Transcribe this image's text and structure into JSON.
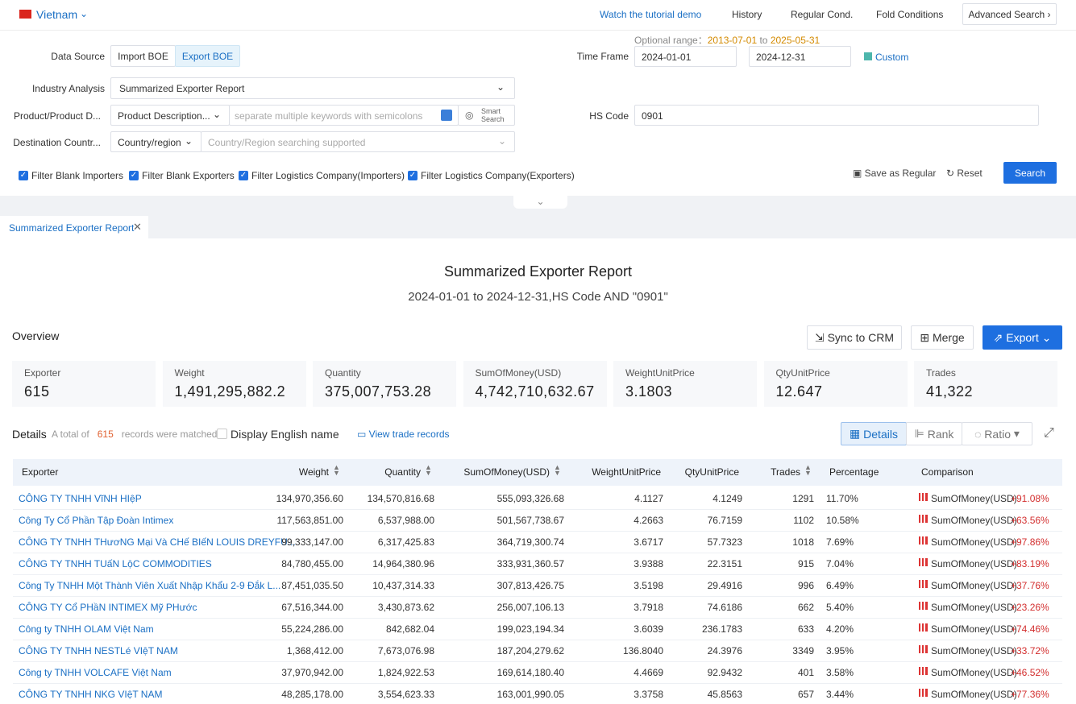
{
  "header": {
    "country": "Vietnam",
    "links": [
      "Watch the tutorial demo",
      "History",
      "Regular Cond.",
      "Fold Conditions"
    ],
    "advanced": "Advanced Search"
  },
  "form": {
    "optional_range_label": "Optional range：",
    "range_start": "2013-07-01",
    "range_to": "to",
    "range_end": "2025-05-31",
    "data_source_label": "Data Source",
    "data_source_options": [
      "Import BOE",
      "Export BOE"
    ],
    "time_frame_label": "Time Frame",
    "time_start": "2024-01-01",
    "time_end": "2024-12-31",
    "custom": "Custom",
    "industry_label": "Industry Analysis",
    "industry_value": "Summarized Exporter Report",
    "product_label": "Product/Product D...",
    "product_select": "Product Description...",
    "product_placeholder": "separate multiple keywords with semicolons",
    "smart_search": [
      "Smart",
      "Search"
    ],
    "hs_label": "HS Code",
    "hs_value": "0901",
    "dest_label": "Destination Countr...",
    "dest_select": "Country/region",
    "dest_placeholder": "Country/Region searching supported",
    "filters": [
      "Filter Blank Importers",
      "Filter Blank Exporters",
      "Filter Logistics Company(Importers)",
      "Filter Logistics Company(Exporters)"
    ],
    "save": "Save as Regular",
    "reset": "Reset",
    "search": "Search"
  },
  "tab": "Summarized Exporter Report",
  "report": {
    "title": "Summarized Exporter Report",
    "subtitle": "2024-01-01 to 2024-12-31,HS Code AND \"0901\"",
    "overview": "Overview",
    "actions": [
      "Sync to CRM",
      "Merge",
      "Export"
    ],
    "stats": [
      {
        "label": "Exporter",
        "value": "615"
      },
      {
        "label": "Weight",
        "value": "1,491,295,882.2"
      },
      {
        "label": "Quantity",
        "value": "375,007,753.28"
      },
      {
        "label": "SumOfMoney(USD)",
        "value": "4,742,710,632.67"
      },
      {
        "label": "WeightUnitPrice",
        "value": "3.1803"
      },
      {
        "label": "QtyUnitPrice",
        "value": "12.647"
      },
      {
        "label": "Trades",
        "value": "41,322"
      }
    ],
    "details": "Details",
    "total_prefix": "A total of",
    "total": "615",
    "total_suffix": "records were matched",
    "english_name": "Display English name",
    "view_records": "View trade records",
    "views": [
      "Details",
      "Rank",
      "Ratio"
    ]
  },
  "table": {
    "columns": [
      "Exporter",
      "Weight",
      "Quantity",
      "SumOfMoney(USD)",
      "WeightUnitPrice",
      "QtyUnitPrice",
      "Trades",
      "Percentage",
      "Comparison"
    ],
    "rows": [
      [
        "CÔNG TY TNHH VĩNH HIệP",
        "134,970,356.60",
        "134,570,816.68",
        "555,093,326.68",
        "4.1127",
        "4.1249",
        "1291",
        "11.70%",
        "SumOfMoney(USD)",
        "+91.08%"
      ],
      [
        "Công Ty Cổ Phần Tập Đoàn Intimex",
        "117,563,851.00",
        "6,537,988.00",
        "501,567,738.67",
        "4.2663",
        "76.7159",
        "1102",
        "10.58%",
        "SumOfMoney(USD)",
        "+63.56%"
      ],
      [
        "CÔNG TY TNHH THươNG Mại Và CHế BIếN LOUIS DREYFU...",
        "99,333,147.00",
        "6,317,425.83",
        "364,719,300.74",
        "3.6717",
        "57.7323",
        "1018",
        "7.69%",
        "SumOfMoney(USD)",
        "+97.86%"
      ],
      [
        "CÔNG TY TNHH TUấN LộC COMMODITIES",
        "84,780,455.00",
        "14,964,380.96",
        "333,931,360.57",
        "3.9388",
        "22.3151",
        "915",
        "7.04%",
        "SumOfMoney(USD)",
        "+83.19%"
      ],
      [
        "Công Ty TNHH Một Thành Viên Xuất Nhập Khẩu 2-9 Đắk L...",
        "87,451,035.50",
        "10,437,314.33",
        "307,813,426.75",
        "3.5198",
        "29.4916",
        "996",
        "6.49%",
        "SumOfMoney(USD)",
        "+37.76%"
      ],
      [
        "CÔNG TY Cổ PHầN INTIMEX Mỹ PHước",
        "67,516,344.00",
        "3,430,873.62",
        "256,007,106.13",
        "3.7918",
        "74.6186",
        "662",
        "5.40%",
        "SumOfMoney(USD)",
        "+23.26%"
      ],
      [
        "Công ty TNHH OLAM Việt Nam",
        "55,224,286.00",
        "842,682.04",
        "199,023,194.34",
        "3.6039",
        "236.1783",
        "633",
        "4.20%",
        "SumOfMoney(USD)",
        "+74.46%"
      ],
      [
        "CÔNG TY TNHH NESTLé VIệT NAM",
        "1,368,412.00",
        "7,673,076.98",
        "187,204,279.62",
        "136.8040",
        "24.3976",
        "3349",
        "3.95%",
        "SumOfMoney(USD)",
        "+33.72%"
      ],
      [
        "Công ty TNHH VOLCAFE Việt Nam",
        "37,970,942.00",
        "1,824,922.53",
        "169,614,180.40",
        "4.4669",
        "92.9432",
        "401",
        "3.58%",
        "SumOfMoney(USD)",
        "+46.52%"
      ],
      [
        "CÔNG TY TNHH NKG VIệT NAM",
        "48,285,178.00",
        "3,554,623.33",
        "163,001,990.05",
        "3.3758",
        "45.8563",
        "657",
        "3.44%",
        "SumOfMoney(USD)",
        "+77.36%"
      ]
    ]
  }
}
